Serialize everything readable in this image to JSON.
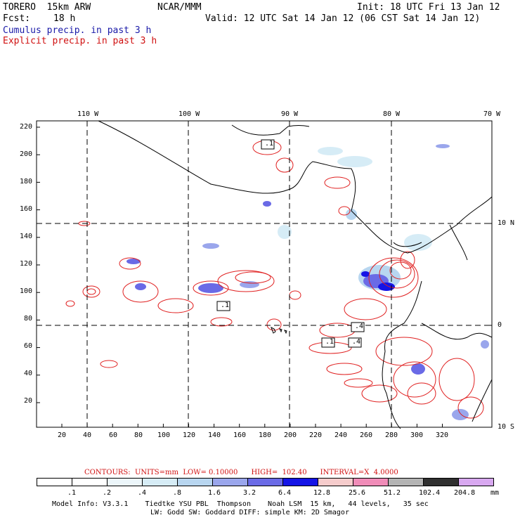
{
  "header": {
    "model": "TORERO  15km ARW",
    "org": "NCAR/MMM",
    "init": "Init: 18 UTC Fri 13 Jan 12",
    "fcst_label": "Fcst:",
    "fcst_value": "18 h",
    "valid": "Valid: 12 UTC Sat 14 Jan 12 (06 CST Sat 14 Jan 12)",
    "legend_cumulus": "Cumulus precip. in past 3 h",
    "legend_explicit": "Explicit precip. in past 3 h"
  },
  "map": {
    "top_lon_labels": [
      "110 W",
      "100 W",
      "90 W",
      "80 W",
      "70 W"
    ],
    "right_lat_labels": [
      "10 N",
      "0",
      "10 S"
    ],
    "y_ticks": [
      "220",
      "200",
      "180",
      "160",
      "140",
      "120",
      "100",
      "80",
      "60",
      "40",
      "20"
    ],
    "x_ticks": [
      "20",
      "40",
      "60",
      "80",
      "100",
      "120",
      "140",
      "160",
      "180",
      "200",
      "220",
      "240",
      "260",
      "280",
      "300",
      "320"
    ],
    "contour_labels": [
      ".1",
      ".1",
      ".4",
      ".1",
      ".4"
    ]
  },
  "contour_info": "CONTOURS:  UNITS=mm  LOW= 0.10000      HIGH=  102.40      INTERVAL=X  4.0000",
  "colorbar": {
    "labels": [
      ".1",
      ".2",
      ".4",
      ".8",
      "1.6",
      "3.2",
      "6.4",
      "12.8",
      "25.6",
      "51.2",
      "102.4",
      "204.8"
    ],
    "unit": "mm",
    "colors": [
      "#ffffff",
      "#ffffff",
      "#ecf6fa",
      "#d6ecf6",
      "#b8d6f0",
      "#9aa6ec",
      "#6a6ae6",
      "#1414e6",
      "#f6cccc",
      "#f08cb8",
      "#b4b4b4",
      "#303030",
      "#d8a8f0"
    ]
  },
  "footer": {
    "line1": "Model Info: V3.3.1    Tiedtke YSU PBL  Thompson    Noah LSM  15 km,   44 levels,   35 sec",
    "line2": "LW: Godd SW: Goddard DIFF: simple KM: 2D Smagor"
  }
}
